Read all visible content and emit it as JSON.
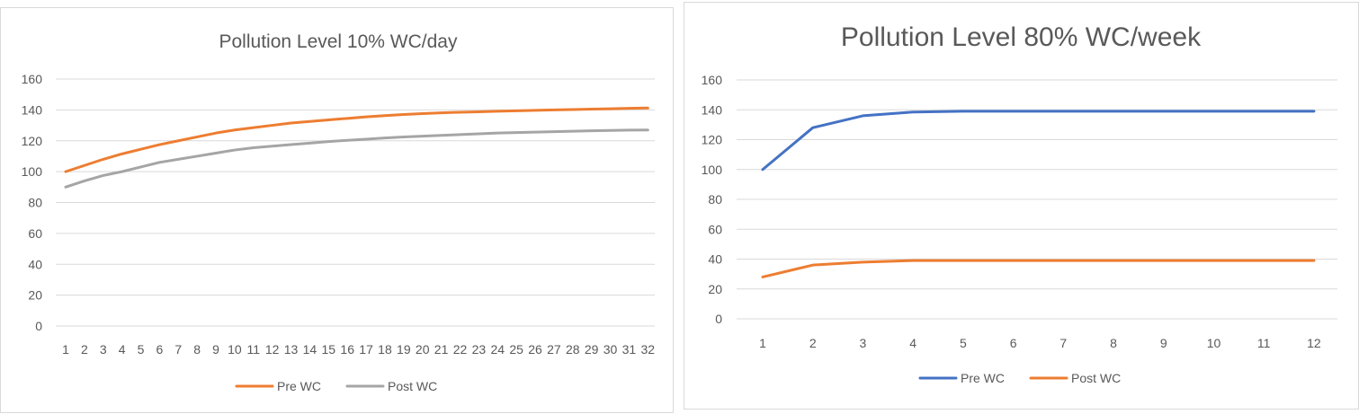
{
  "chart_data": [
    {
      "type": "line",
      "title": "Pollution Level 10% WC/day",
      "xlabel": "",
      "ylabel": "",
      "ylim": [
        0,
        160
      ],
      "yticks": [
        0,
        20,
        40,
        60,
        80,
        100,
        120,
        140,
        160
      ],
      "categories": [
        "1",
        "2",
        "3",
        "4",
        "5",
        "6",
        "7",
        "8",
        "9",
        "10",
        "11",
        "12",
        "13",
        "14",
        "15",
        "16",
        "17",
        "18",
        "19",
        "20",
        "21",
        "22",
        "23",
        "24",
        "25",
        "26",
        "27",
        "28",
        "29",
        "30",
        "31",
        "32"
      ],
      "grid": true,
      "legend": "bottom",
      "series": [
        {
          "name": "Pre WC",
          "color": "#ed7d31",
          "values": [
            100,
            104,
            108,
            111.5,
            114.5,
            117.5,
            120,
            122.5,
            125,
            127,
            128.5,
            130,
            131.5,
            132.5,
            133.5,
            134.5,
            135.5,
            136.3,
            137,
            137.6,
            138.1,
            138.5,
            138.8,
            139.1,
            139.4,
            139.7,
            140,
            140.2,
            140.5,
            140.7,
            141,
            141.2
          ]
        },
        {
          "name": "Post WC",
          "color": "#a5a5a5",
          "values": [
            90,
            94,
            97.5,
            100,
            103,
            106,
            108,
            110,
            112,
            114,
            115.5,
            116.5,
            117.5,
            118.5,
            119.5,
            120.3,
            121,
            121.8,
            122.5,
            123,
            123.5,
            124,
            124.5,
            125,
            125.3,
            125.6,
            125.9,
            126.2,
            126.5,
            126.7,
            126.9,
            127
          ]
        }
      ]
    },
    {
      "type": "line",
      "title": "Pollution Level 80% WC/week",
      "xlabel": "",
      "ylabel": "",
      "ylim": [
        0,
        160
      ],
      "yticks": [
        0,
        20,
        40,
        60,
        80,
        100,
        120,
        140,
        160
      ],
      "categories": [
        "1",
        "2",
        "3",
        "4",
        "5",
        "6",
        "7",
        "8",
        "9",
        "10",
        "11",
        "12"
      ],
      "grid": true,
      "legend": "bottom",
      "series": [
        {
          "name": "Pre WC",
          "color": "#4472c4",
          "values": [
            100,
            128,
            136,
            138.5,
            139,
            139,
            139,
            139,
            139,
            139,
            139,
            139
          ]
        },
        {
          "name": "Post WC",
          "color": "#ed7d31",
          "values": [
            28,
            36,
            38,
            39,
            39,
            39,
            39,
            39,
            39,
            39,
            39,
            39
          ]
        }
      ]
    }
  ]
}
